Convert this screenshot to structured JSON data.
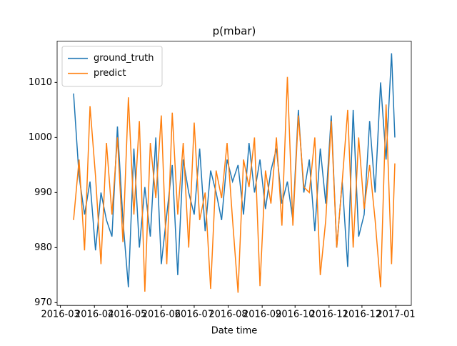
{
  "chart_data": {
    "type": "line",
    "title": "p(mbar)",
    "x_label": "Date time",
    "x": [
      "2016-03-13",
      "2016-03-18",
      "2016-03-23",
      "2016-03-28",
      "2016-04-02",
      "2016-04-07",
      "2016-04-12",
      "2016-04-17",
      "2016-04-22",
      "2016-04-27",
      "2016-05-02",
      "2016-05-07",
      "2016-05-12",
      "2016-05-17",
      "2016-05-22",
      "2016-05-27",
      "2016-06-01",
      "2016-06-06",
      "2016-06-11",
      "2016-06-16",
      "2016-06-21",
      "2016-06-26",
      "2016-07-01",
      "2016-07-06",
      "2016-07-11",
      "2016-07-16",
      "2016-07-21",
      "2016-07-26",
      "2016-07-31",
      "2016-08-05",
      "2016-08-10",
      "2016-08-15",
      "2016-08-20",
      "2016-08-25",
      "2016-08-30",
      "2016-09-04",
      "2016-09-09",
      "2016-09-14",
      "2016-09-19",
      "2016-09-24",
      "2016-09-29",
      "2016-10-04",
      "2016-10-09",
      "2016-10-14",
      "2016-10-19",
      "2016-10-24",
      "2016-10-29",
      "2016-11-03",
      "2016-11-08",
      "2016-11-13",
      "2016-11-18",
      "2016-11-23",
      "2016-11-28",
      "2016-12-03",
      "2016-12-08",
      "2016-12-13",
      "2016-12-18",
      "2016-12-23",
      "2016-12-28",
      "2016-12-31"
    ],
    "series": [
      {
        "name": "ground_truth",
        "color": "#1f77b4",
        "values": [
          1008,
          993,
          986,
          992,
          979.5,
          990,
          985,
          982,
          1002,
          985,
          972.8,
          998,
          980,
          991,
          982,
          1000,
          977,
          986,
          995,
          975,
          996,
          990,
          986,
          998,
          983,
          994,
          990,
          985,
          996,
          992,
          995,
          986,
          999,
          990,
          996,
          987,
          994,
          998,
          988,
          992,
          985,
          1005,
          990,
          996,
          983,
          998,
          988,
          1004,
          980,
          992,
          976.5,
          1005,
          982,
          986,
          1003,
          990,
          1010,
          996,
          1015.3,
          1000
        ]
      },
      {
        "name": "predict",
        "color": "#ff7f0e",
        "values": [
          985,
          996,
          979.5,
          1005.7,
          993,
          977,
          999,
          986,
          1000,
          981,
          1007.3,
          986,
          1003,
          972,
          999,
          989,
          1004,
          977,
          1004.5,
          986,
          999,
          980,
          1002.7,
          985,
          990,
          972.5,
          994,
          989,
          999,
          985,
          971.8,
          996,
          991,
          1000,
          973,
          994,
          988,
          1000,
          984,
          1011,
          984,
          1004,
          991,
          990,
          1000,
          975,
          985,
          1003,
          980,
          992,
          1005,
          980,
          1000,
          987,
          995,
          985,
          972.8,
          1006,
          977,
          995.3
        ]
      }
    ],
    "xlim": [
      "2016-02-27",
      "2017-01-15"
    ],
    "xticks": [
      {
        "value": "2016-03-01",
        "label": "2016-03"
      },
      {
        "value": "2016-04-01",
        "label": "2016-04"
      },
      {
        "value": "2016-05-01",
        "label": "2016-05"
      },
      {
        "value": "2016-06-01",
        "label": "2016-06"
      },
      {
        "value": "2016-07-01",
        "label": "2016-07"
      },
      {
        "value": "2016-08-01",
        "label": "2016-08"
      },
      {
        "value": "2016-09-01",
        "label": "2016-09"
      },
      {
        "value": "2016-10-01",
        "label": "2016-10"
      },
      {
        "value": "2016-11-01",
        "label": "2016-11"
      },
      {
        "value": "2016-12-01",
        "label": "2016-12"
      },
      {
        "value": "2017-01-01",
        "label": "2017-01"
      }
    ],
    "ylim": [
      969.5,
      1017.5
    ],
    "yticks": [
      970,
      980,
      990,
      1000,
      1010
    ],
    "legend": "upper left",
    "grid": false
  }
}
